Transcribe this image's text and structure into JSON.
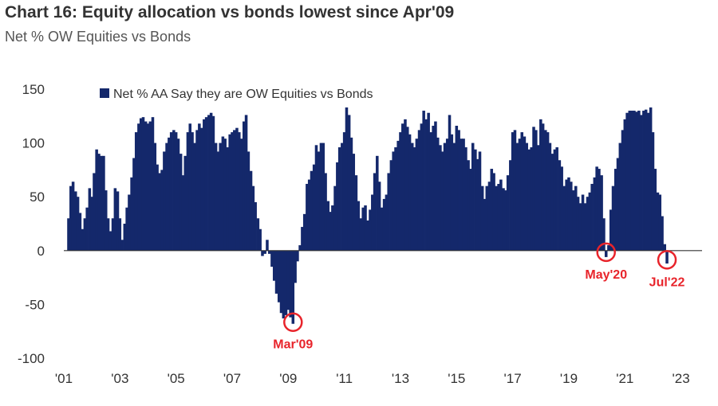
{
  "title": "Chart 16: Equity allocation vs bonds lowest since Apr'09",
  "subtitle": "Net % OW Equities vs Bonds",
  "colors": {
    "bars": "#14286b",
    "annotation": "#e8242b",
    "axis": "#333333"
  },
  "chart_data": {
    "type": "bar",
    "series": [
      {
        "name": "Net % AA Say they are OW Equities vs Bonds"
      }
    ],
    "ylim": [
      -100,
      150
    ],
    "yticks": [
      150,
      100,
      50,
      0,
      -50,
      -100
    ],
    "xlim": [
      2001.0,
      2023.75
    ],
    "xticks": [
      {
        "label": "'01",
        "x": 2001
      },
      {
        "label": "'03",
        "x": 2003
      },
      {
        "label": "'05",
        "x": 2005
      },
      {
        "label": "'07",
        "x": 2007
      },
      {
        "label": "'09",
        "x": 2009
      },
      {
        "label": "'11",
        "x": 2011
      },
      {
        "label": "'13",
        "x": 2013
      },
      {
        "label": "'15",
        "x": 2015
      },
      {
        "label": "'17",
        "x": 2017
      },
      {
        "label": "'19",
        "x": 2019
      },
      {
        "label": "'21",
        "x": 2021
      },
      {
        "label": "'23",
        "x": 2023
      }
    ],
    "points": [
      {
        "x": 2001.17,
        "y": 30
      },
      {
        "x": 2001.25,
        "y": 60
      },
      {
        "x": 2001.33,
        "y": 64
      },
      {
        "x": 2001.42,
        "y": 55
      },
      {
        "x": 2001.5,
        "y": 50
      },
      {
        "x": 2001.58,
        "y": 35
      },
      {
        "x": 2001.67,
        "y": 20
      },
      {
        "x": 2001.75,
        "y": 30
      },
      {
        "x": 2001.83,
        "y": 40
      },
      {
        "x": 2001.92,
        "y": 58
      },
      {
        "x": 2002.0,
        "y": 50
      },
      {
        "x": 2002.08,
        "y": 72
      },
      {
        "x": 2002.17,
        "y": 94
      },
      {
        "x": 2002.25,
        "y": 90
      },
      {
        "x": 2002.33,
        "y": 88
      },
      {
        "x": 2002.42,
        "y": 88
      },
      {
        "x": 2002.5,
        "y": 56
      },
      {
        "x": 2002.58,
        "y": 30
      },
      {
        "x": 2002.67,
        "y": 18
      },
      {
        "x": 2002.75,
        "y": 30
      },
      {
        "x": 2002.83,
        "y": 58
      },
      {
        "x": 2002.92,
        "y": 55
      },
      {
        "x": 2003.0,
        "y": 30
      },
      {
        "x": 2003.08,
        "y": 10
      },
      {
        "x": 2003.17,
        "y": 25
      },
      {
        "x": 2003.25,
        "y": 40
      },
      {
        "x": 2003.33,
        "y": 52
      },
      {
        "x": 2003.42,
        "y": 68
      },
      {
        "x": 2003.5,
        "y": 86
      },
      {
        "x": 2003.58,
        "y": 110
      },
      {
        "x": 2003.67,
        "y": 118
      },
      {
        "x": 2003.75,
        "y": 123
      },
      {
        "x": 2003.83,
        "y": 124
      },
      {
        "x": 2003.92,
        "y": 120
      },
      {
        "x": 2004.0,
        "y": 118
      },
      {
        "x": 2004.08,
        "y": 120
      },
      {
        "x": 2004.17,
        "y": 124
      },
      {
        "x": 2004.25,
        "y": 100
      },
      {
        "x": 2004.33,
        "y": 80
      },
      {
        "x": 2004.42,
        "y": 72
      },
      {
        "x": 2004.5,
        "y": 75
      },
      {
        "x": 2004.58,
        "y": 92
      },
      {
        "x": 2004.67,
        "y": 100
      },
      {
        "x": 2004.75,
        "y": 105
      },
      {
        "x": 2004.83,
        "y": 110
      },
      {
        "x": 2004.92,
        "y": 112
      },
      {
        "x": 2005.0,
        "y": 110
      },
      {
        "x": 2005.08,
        "y": 104
      },
      {
        "x": 2005.17,
        "y": 90
      },
      {
        "x": 2005.25,
        "y": 70
      },
      {
        "x": 2005.33,
        "y": 88
      },
      {
        "x": 2005.42,
        "y": 110
      },
      {
        "x": 2005.5,
        "y": 118
      },
      {
        "x": 2005.58,
        "y": 110
      },
      {
        "x": 2005.67,
        "y": 100
      },
      {
        "x": 2005.75,
        "y": 112
      },
      {
        "x": 2005.83,
        "y": 118
      },
      {
        "x": 2005.92,
        "y": 114
      },
      {
        "x": 2006.0,
        "y": 122
      },
      {
        "x": 2006.08,
        "y": 124
      },
      {
        "x": 2006.17,
        "y": 126
      },
      {
        "x": 2006.25,
        "y": 128
      },
      {
        "x": 2006.33,
        "y": 125
      },
      {
        "x": 2006.42,
        "y": 100
      },
      {
        "x": 2006.5,
        "y": 92
      },
      {
        "x": 2006.58,
        "y": 100
      },
      {
        "x": 2006.67,
        "y": 106
      },
      {
        "x": 2006.75,
        "y": 104
      },
      {
        "x": 2006.83,
        "y": 96
      },
      {
        "x": 2006.92,
        "y": 108
      },
      {
        "x": 2007.0,
        "y": 110
      },
      {
        "x": 2007.08,
        "y": 112
      },
      {
        "x": 2007.17,
        "y": 114
      },
      {
        "x": 2007.25,
        "y": 110
      },
      {
        "x": 2007.33,
        "y": 104
      },
      {
        "x": 2007.42,
        "y": 120
      },
      {
        "x": 2007.5,
        "y": 126
      },
      {
        "x": 2007.58,
        "y": 92
      },
      {
        "x": 2007.67,
        "y": 74
      },
      {
        "x": 2007.75,
        "y": 60
      },
      {
        "x": 2007.83,
        "y": 45
      },
      {
        "x": 2007.92,
        "y": 30
      },
      {
        "x": 2008.0,
        "y": 20
      },
      {
        "x": 2008.08,
        "y": -5
      },
      {
        "x": 2008.17,
        "y": -3
      },
      {
        "x": 2008.25,
        "y": 10
      },
      {
        "x": 2008.33,
        "y": -3
      },
      {
        "x": 2008.42,
        "y": -15
      },
      {
        "x": 2008.5,
        "y": -28
      },
      {
        "x": 2008.58,
        "y": -40
      },
      {
        "x": 2008.67,
        "y": -48
      },
      {
        "x": 2008.75,
        "y": -58
      },
      {
        "x": 2008.83,
        "y": -63
      },
      {
        "x": 2008.92,
        "y": -60
      },
      {
        "x": 2009.0,
        "y": -55
      },
      {
        "x": 2009.08,
        "y": -62
      },
      {
        "x": 2009.17,
        "y": -68
      },
      {
        "x": 2009.25,
        "y": -30
      },
      {
        "x": 2009.33,
        "y": -10
      },
      {
        "x": 2009.42,
        "y": 5
      },
      {
        "x": 2009.5,
        "y": 22
      },
      {
        "x": 2009.58,
        "y": 34
      },
      {
        "x": 2009.67,
        "y": 62
      },
      {
        "x": 2009.75,
        "y": 66
      },
      {
        "x": 2009.83,
        "y": 74
      },
      {
        "x": 2009.92,
        "y": 80
      },
      {
        "x": 2010.0,
        "y": 98
      },
      {
        "x": 2010.08,
        "y": 92
      },
      {
        "x": 2010.17,
        "y": 100
      },
      {
        "x": 2010.25,
        "y": 100
      },
      {
        "x": 2010.33,
        "y": 72
      },
      {
        "x": 2010.42,
        "y": 46
      },
      {
        "x": 2010.5,
        "y": 36
      },
      {
        "x": 2010.58,
        "y": 42
      },
      {
        "x": 2010.67,
        "y": 60
      },
      {
        "x": 2010.75,
        "y": 82
      },
      {
        "x": 2010.83,
        "y": 96
      },
      {
        "x": 2010.92,
        "y": 100
      },
      {
        "x": 2011.0,
        "y": 110
      },
      {
        "x": 2011.08,
        "y": 133
      },
      {
        "x": 2011.17,
        "y": 126
      },
      {
        "x": 2011.25,
        "y": 105
      },
      {
        "x": 2011.33,
        "y": 90
      },
      {
        "x": 2011.42,
        "y": 70
      },
      {
        "x": 2011.5,
        "y": 46
      },
      {
        "x": 2011.58,
        "y": 30
      },
      {
        "x": 2011.67,
        "y": 40
      },
      {
        "x": 2011.75,
        "y": 42
      },
      {
        "x": 2011.83,
        "y": 28
      },
      {
        "x": 2011.92,
        "y": 38
      },
      {
        "x": 2012.0,
        "y": 52
      },
      {
        "x": 2012.08,
        "y": 72
      },
      {
        "x": 2012.17,
        "y": 88
      },
      {
        "x": 2012.25,
        "y": 64
      },
      {
        "x": 2012.33,
        "y": 40
      },
      {
        "x": 2012.42,
        "y": 48
      },
      {
        "x": 2012.5,
        "y": 52
      },
      {
        "x": 2012.58,
        "y": 72
      },
      {
        "x": 2012.67,
        "y": 84
      },
      {
        "x": 2012.75,
        "y": 92
      },
      {
        "x": 2012.83,
        "y": 96
      },
      {
        "x": 2012.92,
        "y": 102
      },
      {
        "x": 2013.0,
        "y": 110
      },
      {
        "x": 2013.08,
        "y": 118
      },
      {
        "x": 2013.17,
        "y": 122
      },
      {
        "x": 2013.25,
        "y": 115
      },
      {
        "x": 2013.33,
        "y": 108
      },
      {
        "x": 2013.42,
        "y": 100
      },
      {
        "x": 2013.5,
        "y": 96
      },
      {
        "x": 2013.58,
        "y": 104
      },
      {
        "x": 2013.67,
        "y": 112
      },
      {
        "x": 2013.75,
        "y": 118
      },
      {
        "x": 2013.83,
        "y": 130
      },
      {
        "x": 2013.92,
        "y": 122
      },
      {
        "x": 2014.0,
        "y": 128
      },
      {
        "x": 2014.08,
        "y": 110
      },
      {
        "x": 2014.17,
        "y": 116
      },
      {
        "x": 2014.25,
        "y": 120
      },
      {
        "x": 2014.33,
        "y": 105
      },
      {
        "x": 2014.42,
        "y": 98
      },
      {
        "x": 2014.5,
        "y": 92
      },
      {
        "x": 2014.58,
        "y": 100
      },
      {
        "x": 2014.67,
        "y": 104
      },
      {
        "x": 2014.75,
        "y": 126
      },
      {
        "x": 2014.83,
        "y": 108
      },
      {
        "x": 2014.92,
        "y": 100
      },
      {
        "x": 2015.0,
        "y": 116
      },
      {
        "x": 2015.08,
        "y": 112
      },
      {
        "x": 2015.17,
        "y": 104
      },
      {
        "x": 2015.25,
        "y": 104
      },
      {
        "x": 2015.33,
        "y": 96
      },
      {
        "x": 2015.42,
        "y": 84
      },
      {
        "x": 2015.5,
        "y": 76
      },
      {
        "x": 2015.58,
        "y": 100
      },
      {
        "x": 2015.67,
        "y": 94
      },
      {
        "x": 2015.75,
        "y": 85
      },
      {
        "x": 2015.83,
        "y": 92
      },
      {
        "x": 2015.92,
        "y": 60
      },
      {
        "x": 2016.0,
        "y": 48
      },
      {
        "x": 2016.08,
        "y": 60
      },
      {
        "x": 2016.17,
        "y": 64
      },
      {
        "x": 2016.25,
        "y": 76
      },
      {
        "x": 2016.33,
        "y": 72
      },
      {
        "x": 2016.42,
        "y": 60
      },
      {
        "x": 2016.5,
        "y": 62
      },
      {
        "x": 2016.58,
        "y": 66
      },
      {
        "x": 2016.67,
        "y": 58
      },
      {
        "x": 2016.75,
        "y": 56
      },
      {
        "x": 2016.83,
        "y": 70
      },
      {
        "x": 2016.92,
        "y": 84
      },
      {
        "x": 2017.0,
        "y": 110
      },
      {
        "x": 2017.08,
        "y": 112
      },
      {
        "x": 2017.17,
        "y": 100
      },
      {
        "x": 2017.25,
        "y": 104
      },
      {
        "x": 2017.33,
        "y": 110
      },
      {
        "x": 2017.42,
        "y": 106
      },
      {
        "x": 2017.5,
        "y": 100
      },
      {
        "x": 2017.58,
        "y": 94
      },
      {
        "x": 2017.67,
        "y": 96
      },
      {
        "x": 2017.75,
        "y": 115
      },
      {
        "x": 2017.83,
        "y": 112
      },
      {
        "x": 2017.92,
        "y": 98
      },
      {
        "x": 2018.0,
        "y": 122
      },
      {
        "x": 2018.08,
        "y": 118
      },
      {
        "x": 2018.17,
        "y": 112
      },
      {
        "x": 2018.25,
        "y": 110
      },
      {
        "x": 2018.33,
        "y": 100
      },
      {
        "x": 2018.42,
        "y": 90
      },
      {
        "x": 2018.5,
        "y": 94
      },
      {
        "x": 2018.58,
        "y": 96
      },
      {
        "x": 2018.67,
        "y": 84
      },
      {
        "x": 2018.75,
        "y": 78
      },
      {
        "x": 2018.83,
        "y": 60
      },
      {
        "x": 2018.92,
        "y": 66
      },
      {
        "x": 2019.0,
        "y": 68
      },
      {
        "x": 2019.08,
        "y": 64
      },
      {
        "x": 2019.17,
        "y": 56
      },
      {
        "x": 2019.25,
        "y": 60
      },
      {
        "x": 2019.33,
        "y": 50
      },
      {
        "x": 2019.42,
        "y": 44
      },
      {
        "x": 2019.5,
        "y": 52
      },
      {
        "x": 2019.58,
        "y": 44
      },
      {
        "x": 2019.67,
        "y": 50
      },
      {
        "x": 2019.75,
        "y": 54
      },
      {
        "x": 2019.83,
        "y": 62
      },
      {
        "x": 2019.92,
        "y": 68
      },
      {
        "x": 2020.0,
        "y": 78
      },
      {
        "x": 2020.08,
        "y": 76
      },
      {
        "x": 2020.17,
        "y": 70
      },
      {
        "x": 2020.25,
        "y": 30
      },
      {
        "x": 2020.33,
        "y": -6
      },
      {
        "x": 2020.42,
        "y": 5
      },
      {
        "x": 2020.5,
        "y": 38
      },
      {
        "x": 2020.58,
        "y": 60
      },
      {
        "x": 2020.67,
        "y": 76
      },
      {
        "x": 2020.75,
        "y": 86
      },
      {
        "x": 2020.83,
        "y": 100
      },
      {
        "x": 2020.92,
        "y": 112
      },
      {
        "x": 2021.0,
        "y": 122
      },
      {
        "x": 2021.08,
        "y": 128
      },
      {
        "x": 2021.17,
        "y": 130
      },
      {
        "x": 2021.25,
        "y": 130
      },
      {
        "x": 2021.33,
        "y": 130
      },
      {
        "x": 2021.42,
        "y": 129
      },
      {
        "x": 2021.5,
        "y": 130
      },
      {
        "x": 2021.58,
        "y": 126
      },
      {
        "x": 2021.67,
        "y": 130
      },
      {
        "x": 2021.75,
        "y": 131
      },
      {
        "x": 2021.83,
        "y": 128
      },
      {
        "x": 2021.92,
        "y": 133
      },
      {
        "x": 2022.0,
        "y": 110
      },
      {
        "x": 2022.08,
        "y": 76
      },
      {
        "x": 2022.17,
        "y": 54
      },
      {
        "x": 2022.25,
        "y": 52
      },
      {
        "x": 2022.33,
        "y": 32
      },
      {
        "x": 2022.42,
        "y": 6
      },
      {
        "x": 2022.5,
        "y": -12
      }
    ],
    "annotations": [
      {
        "label": "Mar'09",
        "x": 2009.17,
        "y": -68,
        "anchor": "below"
      },
      {
        "label": "May'20",
        "x": 2020.33,
        "y": -3,
        "anchor": "below"
      },
      {
        "label": "Jul'22",
        "x": 2022.5,
        "y": -10,
        "anchor": "below"
      }
    ]
  }
}
